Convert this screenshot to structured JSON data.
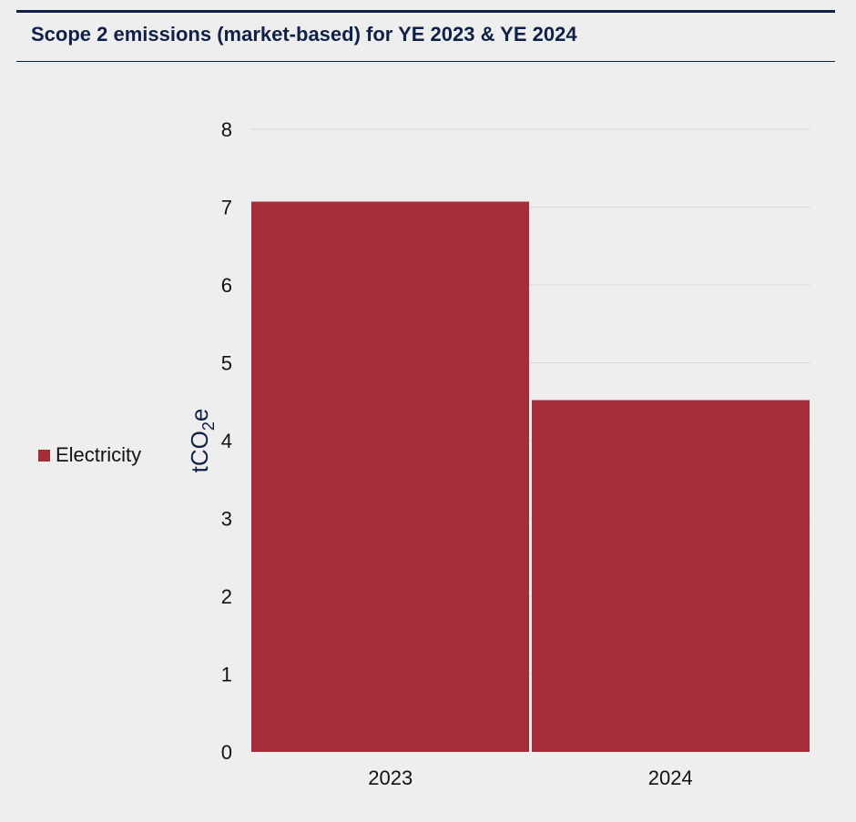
{
  "title": "Scope 2 emissions (market-based) for YE 2023 & YE 2024",
  "colors": {
    "accent": "#0f2147",
    "bar": "#a52d38",
    "grid": "#d8d8d8",
    "background": "#eeeeee"
  },
  "chart_data": {
    "type": "bar",
    "title": "Scope 2 emissions (market-based) for YE 2023 & YE 2024",
    "categories": [
      "2023",
      "2024"
    ],
    "series": [
      {
        "name": "Electricity",
        "values": [
          7.07,
          4.52
        ],
        "color": "#a52d38"
      }
    ],
    "ylabel": "tCO2e",
    "ylabel_parts": {
      "main": "tCO",
      "sub": "2",
      "tail": "e"
    },
    "xlabel": "",
    "ylim": [
      0,
      8
    ],
    "yticks": [
      0,
      1,
      2,
      3,
      4,
      5,
      6,
      7,
      8
    ],
    "grid": true,
    "legend_position": "left"
  }
}
